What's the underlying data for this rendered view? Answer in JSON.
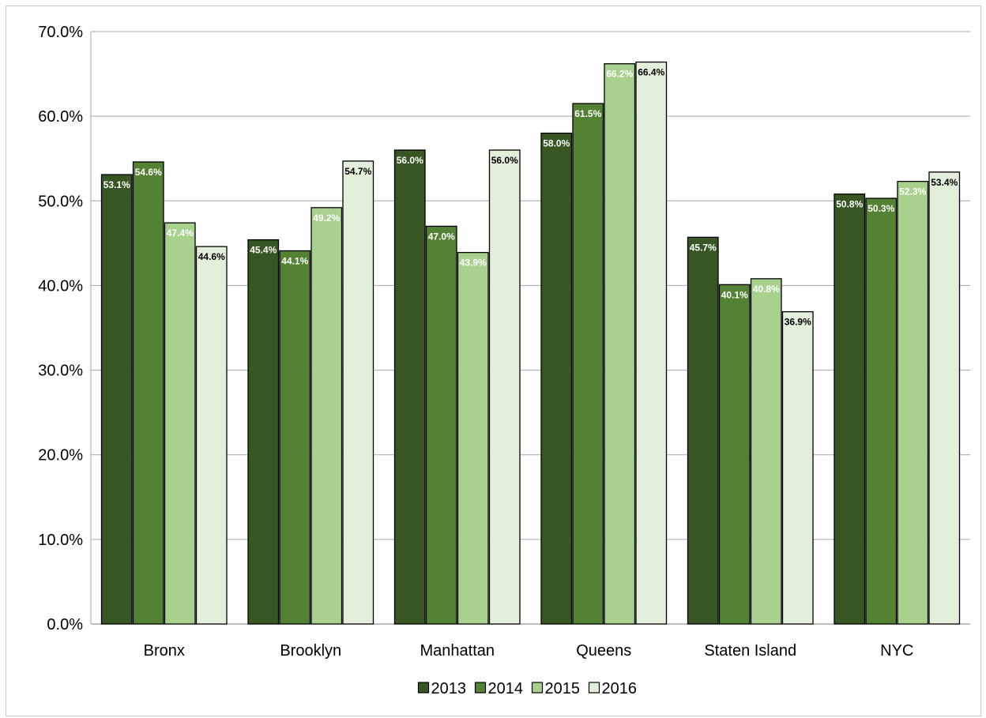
{
  "chart_data": {
    "type": "bar",
    "categories": [
      "Bronx",
      "Brooklyn",
      "Manhattan",
      "Queens",
      "Staten Island",
      "NYC"
    ],
    "series": [
      {
        "name": "2013",
        "values": [
          53.1,
          45.4,
          56.0,
          58.0,
          45.7,
          50.8
        ],
        "labels": [
          "53.1%",
          "45.4%",
          "56.0%",
          "58.0%",
          "45.7%",
          "50.8%"
        ],
        "color": "#375623",
        "label_color": "#ffffff"
      },
      {
        "name": "2014",
        "values": [
          54.6,
          44.1,
          47.0,
          61.5,
          40.1,
          50.3
        ],
        "labels": [
          "54.6%",
          "44.1%",
          "47.0%",
          "61.5%",
          "40.1%",
          "50.3%"
        ],
        "color": "#548235",
        "label_color": "#ffffff"
      },
      {
        "name": "2015",
        "values": [
          47.4,
          49.2,
          43.9,
          66.2,
          40.8,
          52.3
        ],
        "labels": [
          "47.4%",
          "49.2%",
          "43.9%",
          "66.2%",
          "40.8%",
          "52.3%"
        ],
        "color": "#a9d18e",
        "label_color": "#ffffff"
      },
      {
        "name": "2016",
        "values": [
          44.6,
          54.7,
          56.0,
          66.4,
          36.9,
          53.4
        ],
        "labels": [
          "44.6%",
          "54.7%",
          "56.0%",
          "66.4%",
          "36.9%",
          "53.4%"
        ],
        "color": "#e2efda",
        "label_color": "#000000"
      }
    ],
    "y_ticks": [
      "0.0%",
      "10.0%",
      "20.0%",
      "30.0%",
      "40.0%",
      "50.0%",
      "60.0%",
      "70.0%"
    ],
    "ylim": [
      0,
      70
    ],
    "y_step": 10,
    "title": "",
    "xlabel": "",
    "ylabel": "",
    "grid": true,
    "legend_position": "bottom"
  }
}
